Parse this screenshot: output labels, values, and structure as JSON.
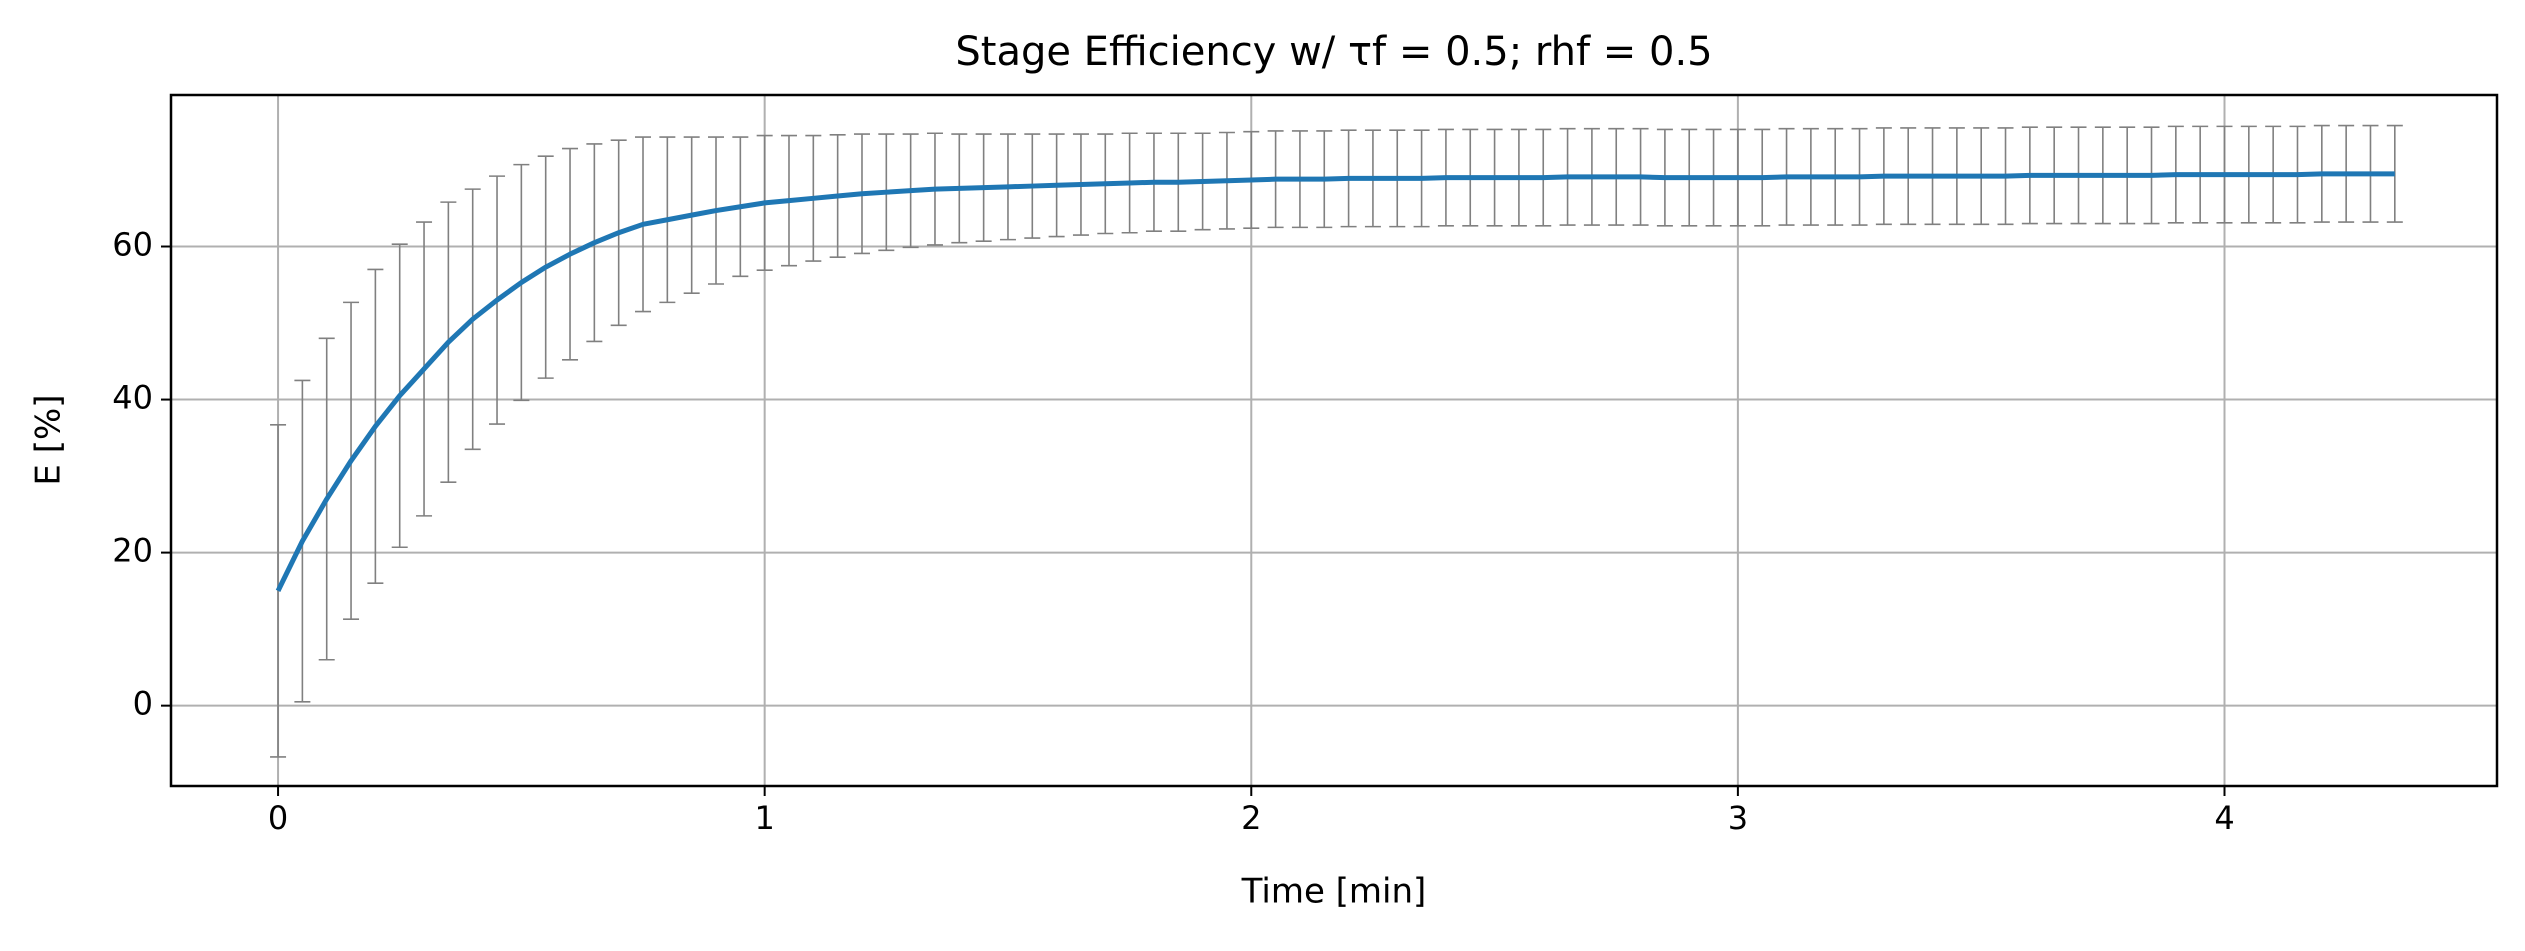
{
  "chart_data": {
    "type": "line",
    "title": "Stage Efficiency w/ τf = 0.5; rhf = 0.5",
    "xlabel": "Time [min]",
    "ylabel": "E [%]",
    "x": [
      0,
      0.05,
      0.1,
      0.15,
      0.2,
      0.25,
      0.3,
      0.35,
      0.4,
      0.45,
      0.5,
      0.55,
      0.6,
      0.65,
      0.7,
      0.75,
      0.8,
      0.85,
      0.9,
      0.95,
      1,
      1.05,
      1.1,
      1.15,
      1.2,
      1.25,
      1.3,
      1.35,
      1.4,
      1.45,
      1.5,
      1.55,
      1.6,
      1.65,
      1.7,
      1.75,
      1.8,
      1.85,
      1.9,
      1.95,
      2,
      2.05,
      2.1,
      2.15,
      2.2,
      2.25,
      2.3,
      2.35,
      2.4,
      2.45,
      2.5,
      2.55,
      2.6,
      2.65,
      2.7,
      2.75,
      2.8,
      2.85,
      2.9,
      2.95,
      3,
      3.05,
      3.1,
      3.15,
      3.2,
      3.25,
      3.3,
      3.35,
      3.4,
      3.45,
      3.5,
      3.55,
      3.6,
      3.65,
      3.7,
      3.75,
      3.8,
      3.85,
      3.9,
      3.95,
      4,
      4.05,
      4.1,
      4.15,
      4.2,
      4.25,
      4.3,
      4.35
    ],
    "series": [
      {
        "color": "#1f77b4",
        "error_color": "#808080",
        "values": [
          15,
          21.5,
          27,
          32,
          36.5,
          40.5,
          44,
          47.5,
          50.5,
          53,
          55.3,
          57.3,
          59,
          60.5,
          61.8,
          62.9,
          63.5,
          64.1,
          64.7,
          65.2,
          65.7,
          66.0,
          66.3,
          66.6,
          66.9,
          67.1,
          67.3,
          67.5,
          67.6,
          67.7,
          67.8,
          67.9,
          68.0,
          68.1,
          68.2,
          68.3,
          68.4,
          68.4,
          68.5,
          68.6,
          68.7,
          68.8,
          68.8,
          68.8,
          68.9,
          68.9,
          68.9,
          68.9,
          69.0,
          69.0,
          69.0,
          69.0,
          69.0,
          69.1,
          69.1,
          69.1,
          69.1,
          69.0,
          69.0,
          69.0,
          69.0,
          69.0,
          69.1,
          69.1,
          69.1,
          69.1,
          69.2,
          69.2,
          69.2,
          69.2,
          69.2,
          69.2,
          69.3,
          69.3,
          69.3,
          69.3,
          69.3,
          69.3,
          69.4,
          69.4,
          69.4,
          69.4,
          69.4,
          69.4,
          69.5,
          69.5,
          69.5,
          69.5
        ],
        "errors": [
          21.7,
          21,
          21,
          20.7,
          20.5,
          19.8,
          19.2,
          18.3,
          17,
          16.2,
          15.4,
          14.5,
          13.8,
          12.9,
          12.1,
          11.4,
          10.8,
          10.2,
          9.6,
          9.1,
          8.8,
          8.5,
          8.2,
          8.0,
          7.8,
          7.6,
          7.4,
          7.3,
          7.1,
          7.0,
          6.9,
          6.8,
          6.7,
          6.6,
          6.5,
          6.5,
          6.4,
          6.4,
          6.3,
          6.3,
          6.3,
          6.3,
          6.3,
          6.3,
          6.3,
          6.3,
          6.3,
          6.3,
          6.3,
          6.3,
          6.3,
          6.3,
          6.3,
          6.3,
          6.3,
          6.3,
          6.3,
          6.3,
          6.3,
          6.3,
          6.3,
          6.3,
          6.3,
          6.3,
          6.3,
          6.3,
          6.3,
          6.3,
          6.3,
          6.3,
          6.3,
          6.3,
          6.3,
          6.3,
          6.3,
          6.3,
          6.3,
          6.3,
          6.3,
          6.3,
          6.3,
          6.3,
          6.3,
          6.3,
          6.3,
          6.3,
          6.3,
          6.3
        ]
      }
    ],
    "xlim": [
      -0.22,
      4.56
    ],
    "ylim": [
      -10.5,
      79.8
    ],
    "xticks": [
      0,
      1,
      2,
      3,
      4
    ],
    "yticks": [
      0,
      20,
      40,
      60
    ],
    "grid": true
  }
}
